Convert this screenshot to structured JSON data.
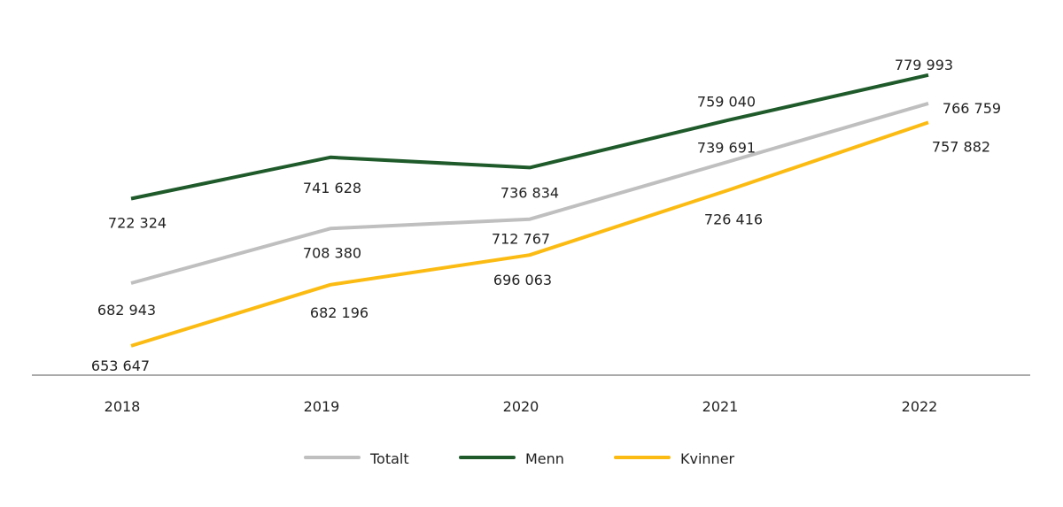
{
  "chart_data": {
    "type": "line",
    "title": "",
    "xlabel": "",
    "ylabel": "",
    "categories": [
      "2018",
      "2019",
      "2020",
      "2021",
      "2022"
    ],
    "ylim": [
      640000,
      815000
    ],
    "grid": false,
    "legend_position": "bottom",
    "series": [
      {
        "name": "Totalt",
        "color": "#bfbfbf",
        "values": [
          682943,
          708380,
          712767,
          739691,
          766759
        ],
        "labels": [
          "682 943",
          "708 380",
          "712 767",
          "739 691",
          "766 759"
        ]
      },
      {
        "name": "Menn",
        "color": "#1e5a2a",
        "values": [
          722324,
          741628,
          736834,
          759040,
          779993
        ],
        "labels": [
          "722 324",
          "741 628",
          "736 834",
          "759 040",
          "779 993"
        ]
      },
      {
        "name": "Kvinner",
        "color": "#fbbb12",
        "values": [
          653647,
          682196,
          696063,
          726416,
          757882
        ],
        "labels": [
          "653 647",
          "682 196",
          "696 063",
          "726 416",
          "757 882"
        ]
      }
    ]
  }
}
